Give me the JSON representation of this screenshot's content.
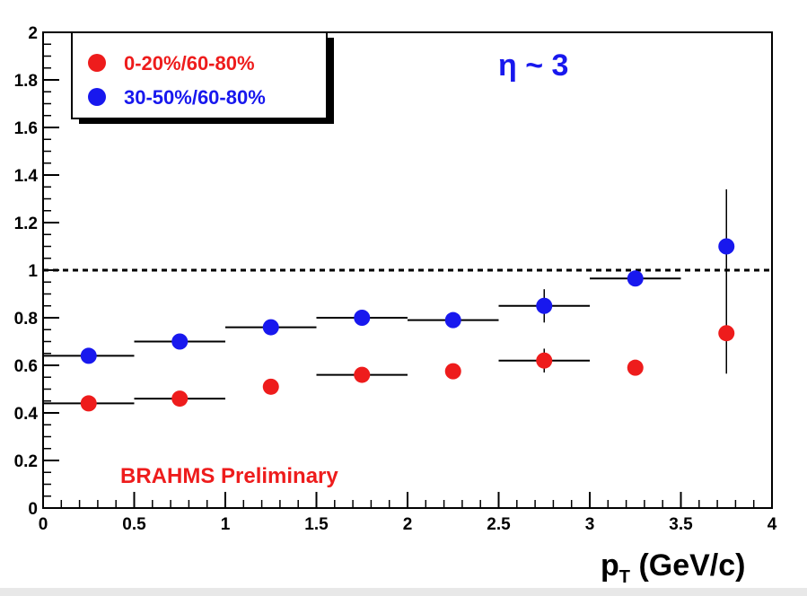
{
  "chart_data": {
    "type": "scatter",
    "title": "",
    "xlabel": "p",
    "xlabel_sub": "T",
    "xlabel_unit": " (GeV/c)",
    "ylabel": "",
    "xlim": [
      0,
      4
    ],
    "ylim": [
      0,
      2
    ],
    "x_ticks": [
      "0",
      "0.5",
      "1",
      "1.5",
      "2",
      "2.5",
      "3",
      "3.5",
      "4"
    ],
    "y_ticks": [
      "0",
      "0.2",
      "0.4",
      "0.6",
      "0.8",
      "1",
      "1.2",
      "1.4",
      "1.6",
      "1.8",
      "2"
    ],
    "reference_line": {
      "y": 1,
      "style": "dashed",
      "color": "#000000"
    },
    "legend_position": "top-left",
    "series": [
      {
        "name": "0-20%/60-80%",
        "color": "#ee1c1c",
        "points": [
          {
            "x": 0.25,
            "y": 0.44,
            "xerr": 0.25,
            "yerr": 0.015
          },
          {
            "x": 0.75,
            "y": 0.46,
            "xerr": 0.25,
            "yerr": 0.015
          },
          {
            "x": 1.25,
            "y": 0.51,
            "xerr": 0.0,
            "yerr": 0.015
          },
          {
            "x": 1.75,
            "y": 0.56,
            "xerr": 0.25,
            "yerr": 0.015
          },
          {
            "x": 2.25,
            "y": 0.575,
            "xerr": 0.0,
            "yerr": 0.02
          },
          {
            "x": 2.75,
            "y": 0.62,
            "xerr": 0.25,
            "yerr": 0.05
          },
          {
            "x": 3.25,
            "y": 0.59,
            "xerr": 0.0,
            "yerr": 0.02
          },
          {
            "x": 3.75,
            "y": 0.735,
            "xerr": 0.0,
            "yerr": 0.17
          }
        ]
      },
      {
        "name": "30-50%/60-80%",
        "color": "#1818ee",
        "points": [
          {
            "x": 0.25,
            "y": 0.64,
            "xerr": 0.25,
            "yerr": 0.015
          },
          {
            "x": 0.75,
            "y": 0.7,
            "xerr": 0.25,
            "yerr": 0.015
          },
          {
            "x": 1.25,
            "y": 0.76,
            "xerr": 0.25,
            "yerr": 0.015
          },
          {
            "x": 1.75,
            "y": 0.8,
            "xerr": 0.25,
            "yerr": 0.015
          },
          {
            "x": 2.25,
            "y": 0.79,
            "xerr": 0.25,
            "yerr": 0.015
          },
          {
            "x": 2.75,
            "y": 0.85,
            "xerr": 0.25,
            "yerr": 0.07
          },
          {
            "x": 3.25,
            "y": 0.965,
            "xerr": 0.25,
            "yerr": 0.015
          },
          {
            "x": 3.75,
            "y": 1.1,
            "xerr": 0.0,
            "yerr": 0.24
          }
        ]
      }
    ],
    "annotations": [
      {
        "text": "η ~ 3",
        "color": "#1818ee"
      },
      {
        "text": "BRAHMS Preliminary",
        "color": "#ee1c1c"
      }
    ]
  }
}
